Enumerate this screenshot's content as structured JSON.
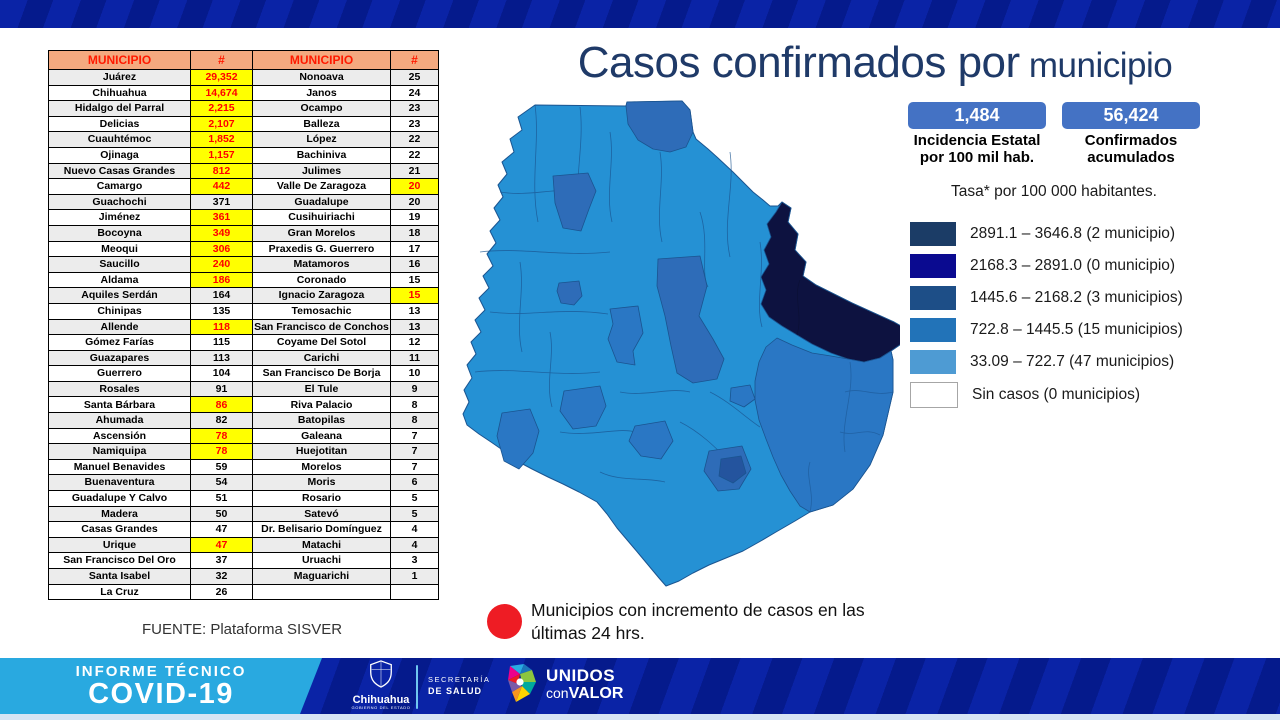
{
  "slide": {
    "title_main": "Casos confirmados por",
    "title_sub": " municipio",
    "rate_note": "Tasa* por 100 000 habitantes.",
    "note_line1": "Municipios con incremento de casos en las",
    "note_line2": "últimas 24 hrs.",
    "source": "FUENTE: Plataforma SISVER"
  },
  "stats": [
    {
      "value": "1,484",
      "label1": "Incidencia Estatal",
      "label2": "por 100 mil hab."
    },
    {
      "value": "56,424",
      "label1": "Confirmados",
      "label2": "acumulados"
    }
  ],
  "legend": {
    "items": [
      {
        "color": "#1B3C66",
        "label": "2891.1 – 3646.8 (2 municipio)"
      },
      {
        "color": "#0A0A90",
        "label": "2168.3 – 2891.0 (0 municipio)"
      },
      {
        "color": "#1D4E87",
        "label": "1445.6 – 2168.2 (3 municipios)"
      },
      {
        "color": "#2273B8",
        "label": "722.8 – 1445.5 (15 municipios)"
      },
      {
        "color": "#4E9BD3",
        "label": "33.09 – 722.7 (47 municipios)"
      },
      {
        "color": "#FFFFFF",
        "label": "Sin casos (0 municipios)"
      }
    ]
  },
  "map": {
    "palette": {
      "base": "#2591D4",
      "low_mid": "#2A77C4",
      "mid": "#2E6CB8",
      "dark": "#24549E",
      "darkest": "#0D1240"
    },
    "highlight_color": "#EE1C24",
    "status_red": "#FF0000",
    "highlight_yellow": "#FFFF00",
    "header_bg": "#F4A97F",
    "stat_box_blue": "#4472C4",
    "band_cyan": "#29A9E0",
    "stripe_blue_light": "#0A23A6",
    "stripe_blue_dark": "#051A8C"
  },
  "table": {
    "headers": [
      "MUNICIPIO",
      "#",
      "MUNICIPIO",
      "#"
    ],
    "rows": [
      [
        "Juárez",
        "29,352",
        1,
        "Nonoava",
        "25",
        0
      ],
      [
        "Chihuahua",
        "14,674",
        1,
        "Janos",
        "24",
        0
      ],
      [
        "Hidalgo del Parral",
        "2,215",
        1,
        "Ocampo",
        "23",
        0
      ],
      [
        "Delicias",
        "2,107",
        1,
        "Balleza",
        "23",
        0
      ],
      [
        "Cuauhtémoc",
        "1,852",
        1,
        "López",
        "22",
        0
      ],
      [
        "Ojinaga",
        "1,157",
        1,
        "Bachiniva",
        "22",
        0
      ],
      [
        "Nuevo Casas Grandes",
        "812",
        1,
        "Julimes",
        "21",
        0
      ],
      [
        "Camargo",
        "442",
        1,
        "Valle De Zaragoza",
        "20",
        1
      ],
      [
        "Guachochi",
        "371",
        0,
        "Guadalupe",
        "20",
        0
      ],
      [
        "Jiménez",
        "361",
        1,
        "Cusihuiriachi",
        "19",
        0
      ],
      [
        "Bocoyna",
        "349",
        1,
        "Gran Morelos",
        "18",
        0
      ],
      [
        "Meoqui",
        "306",
        1,
        "Praxedis G. Guerrero",
        "17",
        0
      ],
      [
        "Saucillo",
        "240",
        1,
        "Matamoros",
        "16",
        0
      ],
      [
        "Aldama",
        "186",
        1,
        "Coronado",
        "15",
        0
      ],
      [
        "Aquiles Serdán",
        "164",
        0,
        "Ignacio Zaragoza",
        "15",
        1
      ],
      [
        "Chinipas",
        "135",
        0,
        "Temosachic",
        "13",
        0
      ],
      [
        "Allende",
        "118",
        1,
        "San Francisco de Conchos",
        "13",
        0
      ],
      [
        "Gómez Farías",
        "115",
        0,
        "Coyame Del Sotol",
        "12",
        0
      ],
      [
        "Guazapares",
        "113",
        0,
        "Carichi",
        "11",
        0
      ],
      [
        "Guerrero",
        "104",
        0,
        "San Francisco De Borja",
        "10",
        0
      ],
      [
        "Rosales",
        "91",
        0,
        "El Tule",
        "9",
        0
      ],
      [
        "Santa Bárbara",
        "86",
        1,
        "Riva Palacio",
        "8",
        0
      ],
      [
        "Ahumada",
        "82",
        0,
        "Batopilas",
        "8",
        0
      ],
      [
        "Ascensión",
        "78",
        1,
        "Galeana",
        "7",
        0
      ],
      [
        "Namiquipa",
        "78",
        1,
        "Huejotitan",
        "7",
        0
      ],
      [
        "Manuel Benavides",
        "59",
        0,
        "Morelos",
        "7",
        0
      ],
      [
        "Buenaventura",
        "54",
        0,
        "Moris",
        "6",
        0
      ],
      [
        "Guadalupe Y Calvo",
        "51",
        0,
        "Rosario",
        "5",
        0
      ],
      [
        "Madera",
        "50",
        0,
        "Satevó",
        "5",
        0
      ],
      [
        "Casas Grandes",
        "47",
        0,
        "Dr. Belisario Domínguez",
        "4",
        0
      ],
      [
        "Urique",
        "47",
        1,
        "Matachi",
        "4",
        0
      ],
      [
        "San Francisco Del Oro",
        "37",
        0,
        "Uruachi",
        "3",
        0
      ],
      [
        "Santa Isabel",
        "32",
        0,
        "Maguarichi",
        "1",
        0
      ],
      [
        "La Cruz",
        "26",
        0,
        "",
        "",
        0
      ]
    ]
  },
  "footer": {
    "program_line1": "INFORME TÉCNICO",
    "program_line2": "COVID-19",
    "gov_name": "Chihuahua",
    "gov_sub": "GOBIERNO DEL ESTADO",
    "dept_line1": "SECRETARÍA",
    "dept_line2": "DE SALUD",
    "brand_line1": "UNIDOS",
    "brand_con": "con",
    "brand_valor": "VALOR"
  }
}
